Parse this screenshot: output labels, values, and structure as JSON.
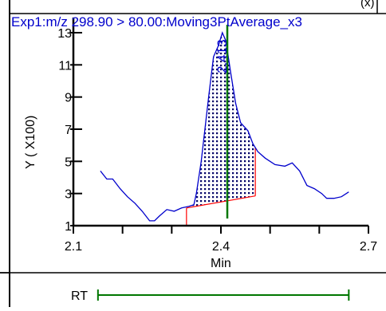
{
  "chart_data": {
    "type": "line",
    "title": "Exp1:m/z 298.90 > 80.00:Moving3PtAverage_x3",
    "top_right_label": "(x)",
    "xlabel": "Min",
    "ylabel": "Y ( X100)",
    "xlim": [
      2.1,
      2.7
    ],
    "ylim": [
      1,
      13
    ],
    "x_ticks": [
      {
        "value": 2.1,
        "label": "2.1"
      },
      {
        "value": 2.4,
        "label": "2.4"
      },
      {
        "value": 2.7,
        "label": "2.7"
      }
    ],
    "x_minor_ticks": [
      2.2,
      2.3,
      2.5,
      2.6
    ],
    "y_ticks": [
      {
        "value": 13,
        "label": "13"
      },
      {
        "value": 11,
        "label": "11"
      },
      {
        "value": 9,
        "label": "9"
      },
      {
        "value": 7,
        "label": "7"
      },
      {
        "value": 5,
        "label": "5"
      },
      {
        "value": 3,
        "label": "3"
      },
      {
        "value": 1,
        "label": "1"
      }
    ],
    "series": [
      {
        "color": "#0000cc",
        "x": [
          2.155,
          2.168,
          2.18,
          2.195,
          2.21,
          2.225,
          2.24,
          2.255,
          2.265,
          2.275,
          2.29,
          2.305,
          2.32,
          2.335,
          2.345,
          2.35,
          2.36,
          2.375,
          2.385,
          2.395,
          2.403,
          2.41,
          2.42,
          2.43,
          2.44,
          2.455,
          2.465,
          2.475,
          2.49,
          2.51,
          2.53,
          2.545,
          2.56,
          2.575,
          2.59,
          2.605,
          2.615,
          2.63,
          2.645,
          2.66
        ],
        "y": [
          4.4,
          3.9,
          3.9,
          3.3,
          2.8,
          2.4,
          1.9,
          1.3,
          1.3,
          1.6,
          2.0,
          1.9,
          2.1,
          2.2,
          2.3,
          3.0,
          5.0,
          9.0,
          11.5,
          12.2,
          13.0,
          12.5,
          10.5,
          8.6,
          7.4,
          6.9,
          6.1,
          5.6,
          5.2,
          4.8,
          4.7,
          4.9,
          4.4,
          3.5,
          3.3,
          3.0,
          2.7,
          2.7,
          2.8,
          3.1
        ]
      }
    ],
    "peak": {
      "label": "2.413",
      "rt": 2.413,
      "start": 2.33,
      "end": 2.47,
      "baseline_start_y": 2.1,
      "baseline_end_y": 2.85,
      "fill": "dotted",
      "fill_color": "#000066",
      "baseline_color": "#ff0000",
      "marker_color": "#007700",
      "label_color": "#0000cc"
    },
    "rt_bar": {
      "label": "RT",
      "start": 2.15,
      "end": 2.66,
      "color": "#007700"
    },
    "grid": false
  }
}
